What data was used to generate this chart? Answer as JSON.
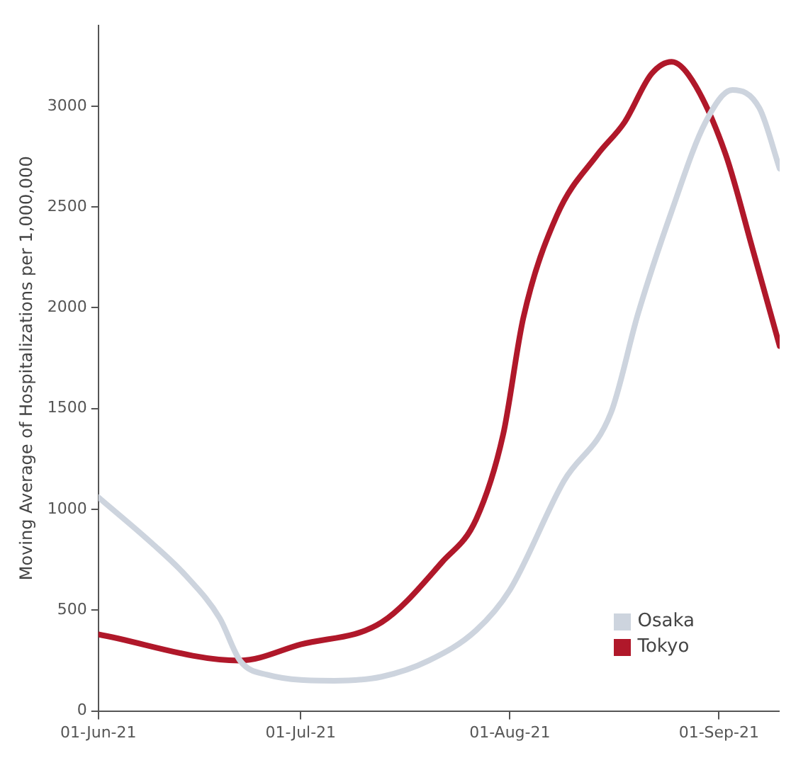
{
  "chart_data": {
    "type": "line",
    "ylabel": "Moving Average of Hospitalizations per 1,000,000",
    "xlim": [
      "2021-06-01",
      "2021-09-10"
    ],
    "xticks": [
      {
        "value": "2021-06-01",
        "label": "01-Jun-21"
      },
      {
        "value": "2021-07-01",
        "label": "01-Jul-21"
      },
      {
        "value": "2021-08-01",
        "label": "01-Aug-21"
      },
      {
        "value": "2021-09-01",
        "label": "01-Sep-21"
      }
    ],
    "ylim": [
      0,
      3400
    ],
    "yticks": [
      0,
      500,
      1000,
      1500,
      2000,
      2500,
      3000
    ],
    "grid": false,
    "legend": "bottom right",
    "marker": "none",
    "line_style": "solid",
    "series": [
      {
        "name": "Osaka",
        "color": "#cdd4de",
        "x": [
          "2021-06-01",
          "2021-06-09",
          "2021-06-14",
          "2021-06-19",
          "2021-06-22",
          "2021-06-26",
          "2021-07-06",
          "2021-07-13",
          "2021-07-20",
          "2021-07-27",
          "2021-08-01",
          "2021-08-09",
          "2021-08-16",
          "2021-08-20",
          "2021-08-25",
          "2021-08-30",
          "2021-09-03",
          "2021-09-07",
          "2021-09-10"
        ],
        "values": [
          1060,
          830,
          670,
          460,
          250,
          180,
          150,
          170,
          250,
          400,
          600,
          1140,
          1480,
          1970,
          2480,
          2920,
          3080,
          2990,
          2690
        ]
      },
      {
        "name": "Tokyo",
        "color": "#b0182a",
        "x": [
          "2021-06-01",
          "2021-06-22",
          "2021-07-01",
          "2021-07-13",
          "2021-07-22",
          "2021-07-27",
          "2021-07-31",
          "2021-08-03",
          "2021-08-08",
          "2021-08-14",
          "2021-08-18",
          "2021-08-22",
          "2021-08-25",
          "2021-08-28",
          "2021-09-02",
          "2021-09-06",
          "2021-09-10"
        ],
        "values": [
          380,
          250,
          330,
          440,
          740,
          950,
          1370,
          1950,
          2460,
          2760,
          2920,
          3160,
          3220,
          3130,
          2760,
          2290,
          1810
        ]
      }
    ]
  }
}
